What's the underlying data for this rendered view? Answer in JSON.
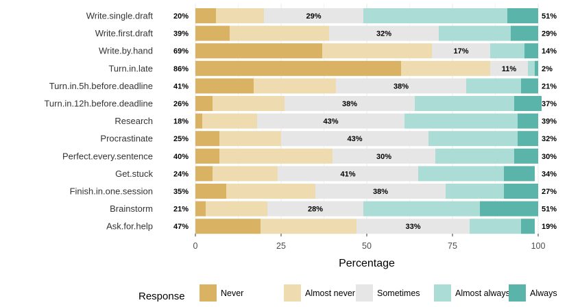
{
  "chart_data": {
    "type": "bar",
    "orientation": "horizontal",
    "stacked": true,
    "categories": [
      "Write.single.draft",
      "Write.first.draft",
      "Write.by.hand",
      "Turn.in.late",
      "Turn.in.5h.before.deadline",
      "Turn.in.12h.before.deadline",
      "Research",
      "Procrastinate",
      "Perfect.every.sentence",
      "Get.stuck",
      "Finish.in.one.session",
      "Brainstorm",
      "Ask.for.help"
    ],
    "series": [
      {
        "name": "Never",
        "color": "#d9b264",
        "values": [
          6,
          10,
          37,
          60,
          17,
          5,
          2,
          7,
          7,
          5,
          9,
          3,
          19
        ]
      },
      {
        "name": "Almost never",
        "color": "#eedbb0",
        "values": [
          14,
          29,
          32,
          26,
          24,
          21,
          16,
          18,
          33,
          19,
          26,
          18,
          28
        ]
      },
      {
        "name": "Sometimes",
        "color": "#e6e6e6",
        "values": [
          29,
          32,
          17,
          11,
          38,
          38,
          43,
          43,
          30,
          41,
          38,
          28,
          33
        ]
      },
      {
        "name": "Almost always",
        "color": "#acdcd6",
        "values": [
          42,
          21,
          10,
          2,
          16,
          29,
          33,
          26,
          23,
          25,
          17,
          34,
          15
        ]
      },
      {
        "name": "Always",
        "color": "#5ab4aa",
        "values": [
          9,
          8,
          4,
          1,
          5,
          8,
          6,
          6,
          7,
          9,
          10,
          17,
          4
        ]
      }
    ],
    "low_labels": [
      "20%",
      "39%",
      "69%",
      "86%",
      "41%",
      "26%",
      "18%",
      "25%",
      "40%",
      "24%",
      "35%",
      "21%",
      "47%"
    ],
    "mid_labels": [
      "29%",
      "32%",
      "17%",
      "11%",
      "38%",
      "38%",
      "43%",
      "43%",
      "30%",
      "41%",
      "38%",
      "28%",
      "33%"
    ],
    "high_labels": [
      "51%",
      "29%",
      "14%",
      "2%",
      "21%",
      "37%",
      "39%",
      "32%",
      "30%",
      "34%",
      "27%",
      "51%",
      "19%"
    ],
    "xlabel": "Percentage",
    "xlim": [
      0,
      100
    ],
    "xticks": [
      0,
      25,
      50,
      75,
      100
    ],
    "tick_labels": [
      "0",
      "25",
      "50",
      "75",
      "100"
    ],
    "grid": true,
    "legend": {
      "title": "Response",
      "position": "bottom",
      "entries": [
        "Never",
        "Almost never",
        "Sometimes",
        "Almost always",
        "Always"
      ]
    }
  }
}
